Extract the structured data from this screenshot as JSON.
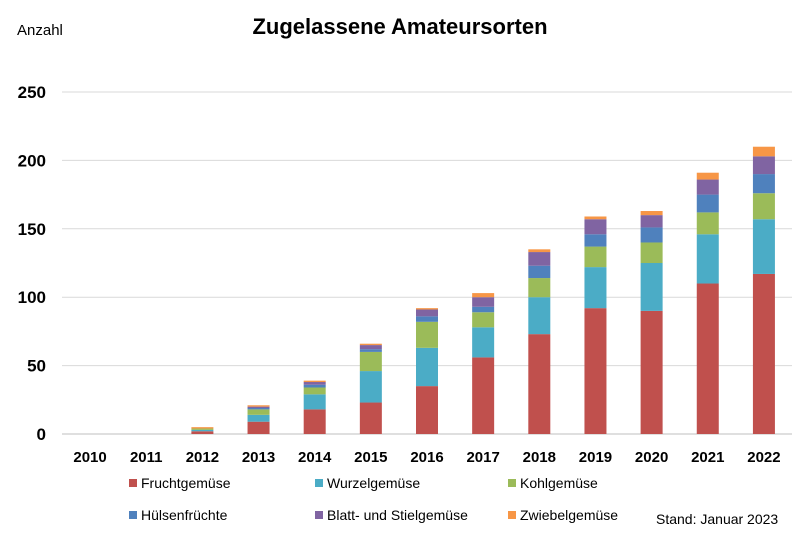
{
  "chart_data": {
    "type": "bar",
    "stacked": true,
    "title": "Zugelassene Amateursorten",
    "ylabel": "Anzahl",
    "xlabel": "",
    "ylim": [
      0,
      250
    ],
    "yticks": [
      0,
      50,
      100,
      150,
      200,
      250
    ],
    "grid": true,
    "legend_position": "bottom",
    "categories": [
      "2010",
      "2011",
      "2012",
      "2013",
      "2014",
      "2015",
      "2016",
      "2017",
      "2018",
      "2019",
      "2020",
      "2021",
      "2022"
    ],
    "series": [
      {
        "name": "Fruchtgemüse",
        "color": "#c0504d",
        "values": [
          0,
          0,
          2,
          9,
          18,
          23,
          35,
          56,
          73,
          92,
          90,
          110,
          117
        ]
      },
      {
        "name": "Wurzelgemüse",
        "color": "#4bacc6",
        "values": [
          0,
          0,
          1,
          5,
          11,
          23,
          28,
          22,
          27,
          30,
          35,
          36,
          40
        ]
      },
      {
        "name": "Kohlgemüse",
        "color": "#9bbb59",
        "values": [
          0,
          0,
          1,
          4,
          5,
          14,
          19,
          11,
          14,
          15,
          15,
          16,
          19
        ]
      },
      {
        "name": "Hülsenfrüchte",
        "color": "#4f81bd",
        "values": [
          0,
          0,
          0,
          1,
          2,
          2,
          4,
          4,
          9,
          9,
          11,
          13,
          14
        ]
      },
      {
        "name": "Blatt- und Stielgemüse",
        "color": "#8064a2",
        "values": [
          0,
          0,
          0,
          1,
          2,
          3,
          5,
          7,
          10,
          11,
          9,
          11,
          13
        ]
      },
      {
        "name": "Zwiebelgemüse",
        "color": "#f79646",
        "values": [
          0,
          0,
          1,
          1,
          1,
          1,
          1,
          3,
          2,
          2,
          3,
          5,
          7
        ]
      }
    ],
    "annotation": "Stand: Januar 2023"
  },
  "colors": {
    "grid": "#d9d9d9",
    "axis": "#bfbfbf"
  }
}
